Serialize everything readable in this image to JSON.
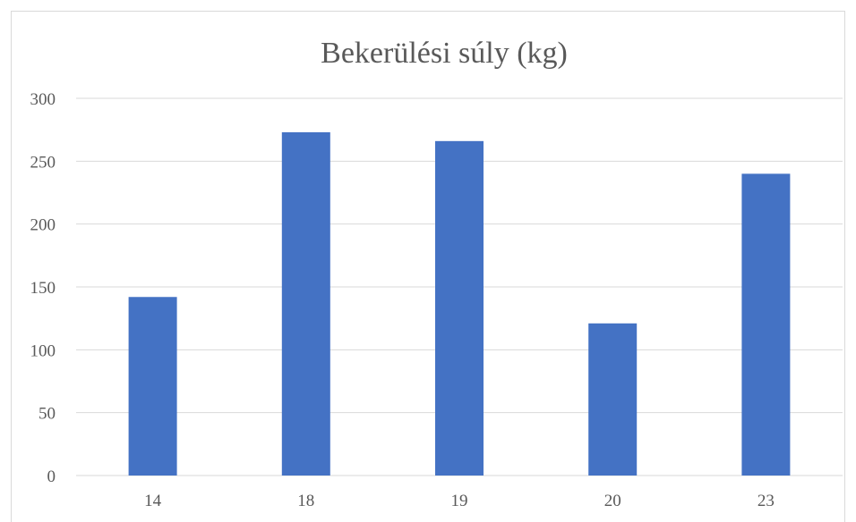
{
  "chart_data": {
    "type": "bar",
    "title": "Bekerülési súly (kg)",
    "xlabel": "",
    "ylabel": "",
    "categories": [
      "14",
      "18",
      "19",
      "20",
      "23"
    ],
    "series": [
      {
        "values": [
          142,
          273,
          266,
          121,
          240
        ]
      }
    ],
    "ylim": [
      0,
      300
    ],
    "yticks": [
      0,
      50,
      100,
      150,
      200,
      250,
      300
    ],
    "ytick_labels": [
      "0",
      "50",
      "100",
      "150",
      "200",
      "250",
      "300"
    ],
    "grid": true,
    "legend": "none",
    "colors": {
      "bar": "#4472C4",
      "grid": "#d9d9d9",
      "text": "#595959"
    }
  }
}
